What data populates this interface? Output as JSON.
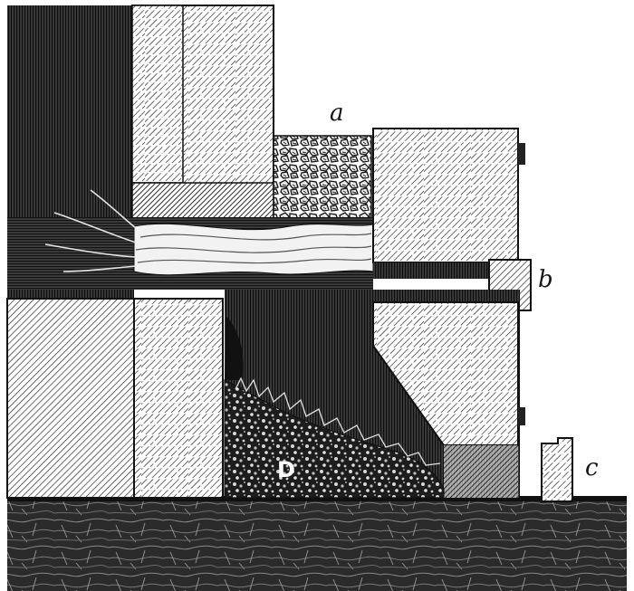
{
  "labels": {
    "a": "a",
    "b": "b",
    "c": "c",
    "D": "D"
  },
  "colors": {
    "ink": "#151515",
    "paper": "#ffffff",
    "dark_fill": "#2a2a2a"
  }
}
